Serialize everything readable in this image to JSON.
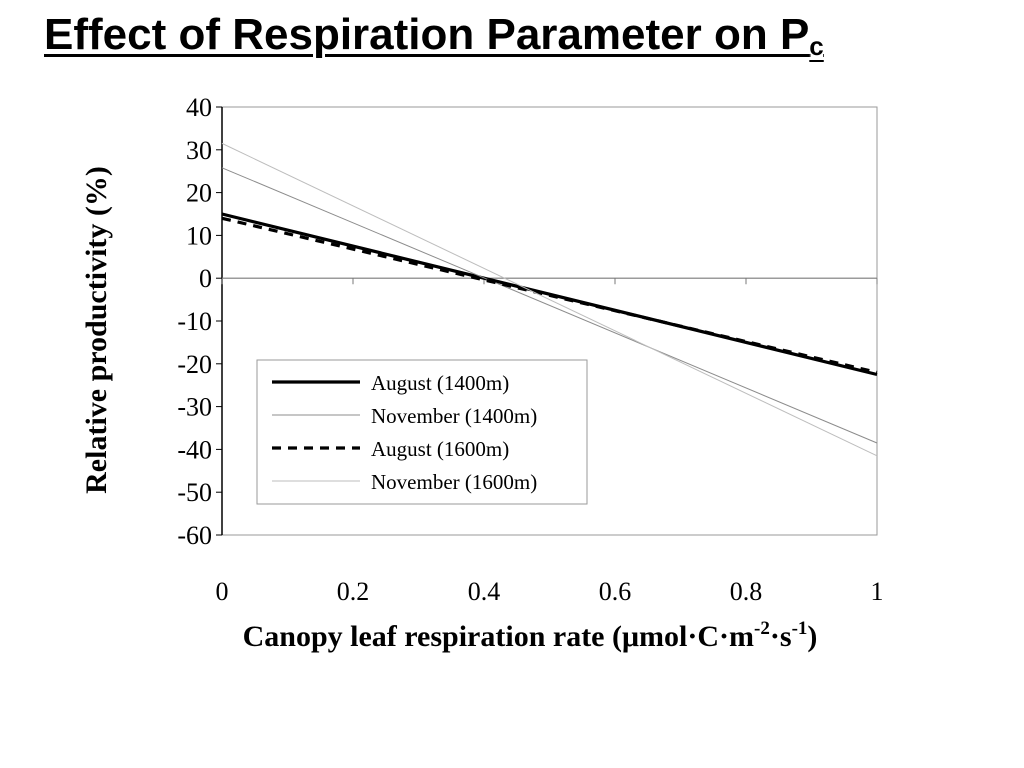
{
  "slide": {
    "title_main": "Effect of Respiration Parameter on P",
    "title_subscript": "c"
  },
  "chart_data": {
    "type": "line",
    "xlabel_main": "Canopy leaf respiration rate (",
    "xlabel_mu": "μ",
    "xlabel_unit1": "mol",
    "xlabel_dot": "·",
    "xlabel_unit2": "C",
    "xlabel_unit3": "m",
    "xlabel_sup1": "-2",
    "xlabel_unit4": "s",
    "xlabel_sup2": "-1",
    "xlabel_close": ")",
    "ylabel": "Relative productivity (%)",
    "xlim": [
      0,
      1
    ],
    "ylim": [
      -60,
      40
    ],
    "x_ticks": [
      "0",
      "0.2",
      "0.4",
      "0.6",
      "0.8",
      "1"
    ],
    "x_tick_values": [
      0,
      0.2,
      0.4,
      0.6,
      0.8,
      1
    ],
    "y_ticks": [
      "40",
      "30",
      "20",
      "10",
      "0",
      "-10",
      "-20",
      "-30",
      "-40",
      "-50",
      "-60"
    ],
    "y_tick_values": [
      40,
      30,
      20,
      10,
      0,
      -10,
      -20,
      -30,
      -40,
      -50,
      -60
    ],
    "grid": false,
    "zero_line": true,
    "legend_position": "lower-left inside plot",
    "series": [
      {
        "name": "August (1400m)",
        "x": [
          0,
          1
        ],
        "y": [
          15,
          -22.5
        ],
        "color": "#000000",
        "style": "solid-thick"
      },
      {
        "name": "November (1400m)",
        "x": [
          0,
          1
        ],
        "y": [
          25.8,
          -38.5
        ],
        "color": "#8c8c8c",
        "style": "solid-thin"
      },
      {
        "name": "August (1600m)",
        "x": [
          0,
          1
        ],
        "y": [
          14,
          -22
        ],
        "color": "#000000",
        "style": "dashed-thick"
      },
      {
        "name": "November (1600m)",
        "x": [
          0,
          1
        ],
        "y": [
          31.5,
          -41.5
        ],
        "color": "#bdbdbd",
        "style": "solid-thin"
      }
    ]
  }
}
